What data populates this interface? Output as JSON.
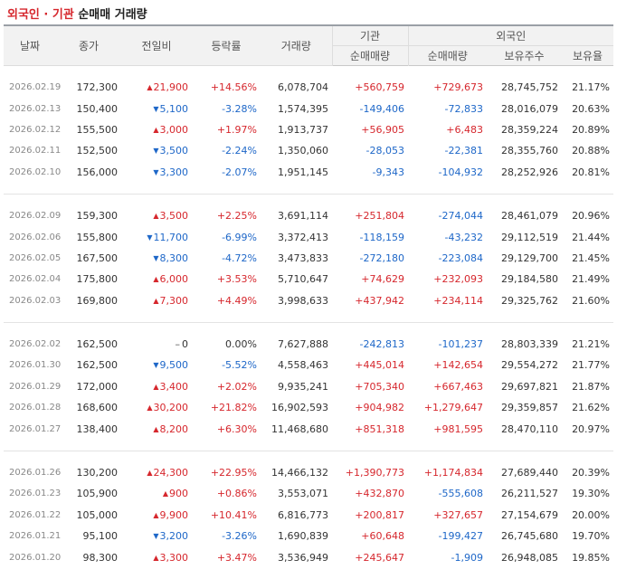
{
  "title": {
    "part1": "외국인 · 기관",
    "part2": "순매매 거래량"
  },
  "headers": {
    "date": "날짜",
    "close": "종가",
    "change": "전일비",
    "rate": "등락률",
    "volume": "거래량",
    "inst": "기관",
    "foreign": "외국인",
    "inst_net": "순매매량",
    "foreign_net": "순매매량",
    "holdings": "보유주수",
    "ratio": "보유율"
  },
  "groups": [
    [
      {
        "date": "2026.02.19",
        "close": "172,300",
        "dir": "up",
        "change": "21,900",
        "rate": "+14.56%",
        "volume": "6,078,704",
        "inst": "+560,759",
        "foreign": "+729,673",
        "holdings": "28,745,752",
        "ratio": "21.17%"
      },
      {
        "date": "2026.02.13",
        "close": "150,400",
        "dir": "down",
        "change": "5,100",
        "rate": "-3.28%",
        "volume": "1,574,395",
        "inst": "-149,406",
        "foreign": "-72,833",
        "holdings": "28,016,079",
        "ratio": "20.63%"
      },
      {
        "date": "2026.02.12",
        "close": "155,500",
        "dir": "up",
        "change": "3,000",
        "rate": "+1.97%",
        "volume": "1,913,737",
        "inst": "+56,905",
        "foreign": "+6,483",
        "holdings": "28,359,224",
        "ratio": "20.89%"
      },
      {
        "date": "2026.02.11",
        "close": "152,500",
        "dir": "down",
        "change": "3,500",
        "rate": "-2.24%",
        "volume": "1,350,060",
        "inst": "-28,053",
        "foreign": "-22,381",
        "holdings": "28,355,760",
        "ratio": "20.88%"
      },
      {
        "date": "2026.02.10",
        "close": "156,000",
        "dir": "down",
        "change": "3,300",
        "rate": "-2.07%",
        "volume": "1,951,145",
        "inst": "-9,343",
        "foreign": "-104,932",
        "holdings": "28,252,926",
        "ratio": "20.81%"
      }
    ],
    [
      {
        "date": "2026.02.09",
        "close": "159,300",
        "dir": "up",
        "change": "3,500",
        "rate": "+2.25%",
        "volume": "3,691,114",
        "inst": "+251,804",
        "foreign": "-274,044",
        "holdings": "28,461,079",
        "ratio": "20.96%"
      },
      {
        "date": "2026.02.06",
        "close": "155,800",
        "dir": "down",
        "change": "11,700",
        "rate": "-6.99%",
        "volume": "3,372,413",
        "inst": "-118,159",
        "foreign": "-43,232",
        "holdings": "29,112,519",
        "ratio": "21.44%"
      },
      {
        "date": "2026.02.05",
        "close": "167,500",
        "dir": "down",
        "change": "8,300",
        "rate": "-4.72%",
        "volume": "3,473,833",
        "inst": "-272,180",
        "foreign": "-223,084",
        "holdings": "29,129,700",
        "ratio": "21.45%"
      },
      {
        "date": "2026.02.04",
        "close": "175,800",
        "dir": "up",
        "change": "6,000",
        "rate": "+3.53%",
        "volume": "5,710,647",
        "inst": "+74,629",
        "foreign": "+232,093",
        "holdings": "29,184,580",
        "ratio": "21.49%"
      },
      {
        "date": "2026.02.03",
        "close": "169,800",
        "dir": "up",
        "change": "7,300",
        "rate": "+4.49%",
        "volume": "3,998,633",
        "inst": "+437,942",
        "foreign": "+234,114",
        "holdings": "29,325,762",
        "ratio": "21.60%"
      }
    ],
    [
      {
        "date": "2026.02.02",
        "close": "162,500",
        "dir": "flat",
        "change": "0",
        "rate": "0.00%",
        "volume": "7,627,888",
        "inst": "-242,813",
        "foreign": "-101,237",
        "holdings": "28,803,339",
        "ratio": "21.21%"
      },
      {
        "date": "2026.01.30",
        "close": "162,500",
        "dir": "down",
        "change": "9,500",
        "rate": "-5.52%",
        "volume": "4,558,463",
        "inst": "+445,014",
        "foreign": "+142,654",
        "holdings": "29,554,272",
        "ratio": "21.77%"
      },
      {
        "date": "2026.01.29",
        "close": "172,000",
        "dir": "up",
        "change": "3,400",
        "rate": "+2.02%",
        "volume": "9,935,241",
        "inst": "+705,340",
        "foreign": "+667,463",
        "holdings": "29,697,821",
        "ratio": "21.87%"
      },
      {
        "date": "2026.01.28",
        "close": "168,600",
        "dir": "up",
        "change": "30,200",
        "rate": "+21.82%",
        "volume": "16,902,593",
        "inst": "+904,982",
        "foreign": "+1,279,647",
        "holdings": "29,359,857",
        "ratio": "21.62%"
      },
      {
        "date": "2026.01.27",
        "close": "138,400",
        "dir": "up",
        "change": "8,200",
        "rate": "+6.30%",
        "volume": "11,468,680",
        "inst": "+851,318",
        "foreign": "+981,595",
        "holdings": "28,470,110",
        "ratio": "20.97%"
      }
    ],
    [
      {
        "date": "2026.01.26",
        "close": "130,200",
        "dir": "up",
        "change": "24,300",
        "rate": "+22.95%",
        "volume": "14,466,132",
        "inst": "+1,390,773",
        "foreign": "+1,174,834",
        "holdings": "27,689,440",
        "ratio": "20.39%"
      },
      {
        "date": "2026.01.23",
        "close": "105,900",
        "dir": "up",
        "change": "900",
        "rate": "+0.86%",
        "volume": "3,553,071",
        "inst": "+432,870",
        "foreign": "-555,608",
        "holdings": "26,211,527",
        "ratio": "19.30%"
      },
      {
        "date": "2026.01.22",
        "close": "105,000",
        "dir": "up",
        "change": "9,900",
        "rate": "+10.41%",
        "volume": "6,816,773",
        "inst": "+200,817",
        "foreign": "+327,657",
        "holdings": "27,154,679",
        "ratio": "20.00%"
      },
      {
        "date": "2026.01.21",
        "close": "95,100",
        "dir": "down",
        "change": "3,200",
        "rate": "-3.26%",
        "volume": "1,690,839",
        "inst": "+60,648",
        "foreign": "-199,427",
        "holdings": "26,745,680",
        "ratio": "19.70%"
      },
      {
        "date": "2026.01.20",
        "close": "98,300",
        "dir": "up",
        "change": "3,300",
        "rate": "+3.47%",
        "volume": "3,536,949",
        "inst": "+245,647",
        "foreign": "-1,909",
        "holdings": "26,948,085",
        "ratio": "19.85%"
      }
    ]
  ],
  "colors": {
    "up": "#d6272d",
    "down": "#1e67c8",
    "header_bg": "#f2f2f2"
  }
}
